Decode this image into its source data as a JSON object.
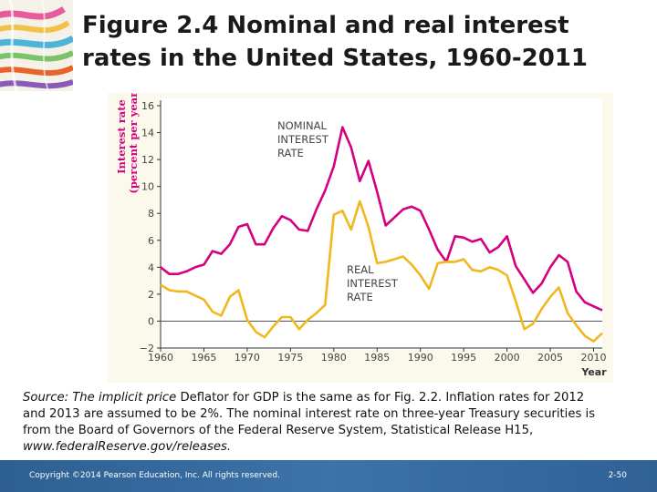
{
  "slide": {
    "title_line1": "Figure 2.4  Nominal and real interest",
    "title_line2": "rates in the United States, 1960-2011"
  },
  "source": {
    "label": "Source:",
    "line1_italic": "The implicit price",
    "line1_rest": "Deflator for GDP is the same as for Fig. 2.2. Inflation rates for 2012",
    "line2": "and 2013 are assumed to be 2%. The nominal interest rate on three-year Treasury securities is",
    "line3": "from the Board of Governors of the Federal Reserve System, Statistical Release H15,",
    "url": "www.federalReserve.gov/releases."
  },
  "footer": {
    "copyright": "Copyright ©2014 Pearson Education, Inc. All rights reserved.",
    "page": "2-50"
  },
  "chart_data": {
    "type": "line",
    "ylabel_line1": "Interest rate",
    "ylabel_line2": "(percent per year)",
    "xlabel": "Year",
    "xlim": [
      1960,
      2011
    ],
    "ylim": [
      -2,
      16
    ],
    "xticks": [
      "1960",
      "1965",
      "1970",
      "1975",
      "1980",
      "1985",
      "1990",
      "1995",
      "2000",
      "2005",
      "2010"
    ],
    "yticks": [
      "16",
      "14",
      "12",
      "10",
      "8",
      "6",
      "4",
      "2",
      "0",
      "−2"
    ],
    "series": [
      {
        "name": "NOMINAL INTEREST RATE",
        "label_lines": [
          "NOMINAL",
          "INTEREST",
          "RATE"
        ],
        "color": "#d5007f",
        "x": [
          1960,
          1961,
          1962,
          1963,
          1964,
          1965,
          1966,
          1967,
          1968,
          1969,
          1970,
          1971,
          1972,
          1973,
          1974,
          1975,
          1976,
          1977,
          1978,
          1979,
          1980,
          1981,
          1982,
          1983,
          1984,
          1985,
          1986,
          1987,
          1988,
          1989,
          1990,
          1991,
          1992,
          1993,
          1994,
          1995,
          1996,
          1997,
          1998,
          1999,
          2000,
          2001,
          2002,
          2003,
          2004,
          2005,
          2006,
          2007,
          2008,
          2009,
          2010,
          2011
        ],
        "y": [
          4.0,
          3.5,
          3.5,
          3.7,
          4.0,
          4.2,
          5.2,
          5.0,
          5.7,
          7.0,
          7.2,
          5.7,
          5.7,
          6.9,
          7.8,
          7.5,
          6.8,
          6.7,
          8.3,
          9.7,
          11.5,
          14.4,
          12.9,
          10.4,
          11.9,
          9.6,
          7.1,
          7.7,
          8.3,
          8.5,
          8.2,
          6.8,
          5.3,
          4.4,
          6.3,
          6.2,
          5.9,
          6.1,
          5.1,
          5.5,
          6.3,
          4.1,
          3.1,
          2.1,
          2.8,
          4.0,
          4.9,
          4.4,
          2.2,
          1.4,
          1.1,
          0.8
        ]
      },
      {
        "name": "REAL INTEREST RATE",
        "label_lines": [
          "REAL",
          "INTEREST",
          "RATE"
        ],
        "color": "#f0b81e",
        "x": [
          1960,
          1961,
          1962,
          1963,
          1964,
          1965,
          1966,
          1967,
          1968,
          1969,
          1970,
          1971,
          1972,
          1973,
          1974,
          1975,
          1976,
          1977,
          1978,
          1979,
          1980,
          1981,
          1982,
          1983,
          1984,
          1985,
          1986,
          1987,
          1988,
          1989,
          1990,
          1991,
          1992,
          1993,
          1994,
          1995,
          1996,
          1997,
          1998,
          1999,
          2000,
          2001,
          2002,
          2003,
          2004,
          2005,
          2006,
          2007,
          2008,
          2009,
          2010,
          2011
        ],
        "y": [
          2.7,
          2.3,
          2.2,
          2.2,
          1.9,
          1.6,
          0.7,
          0.4,
          1.8,
          2.3,
          0.1,
          -0.8,
          -1.2,
          -0.4,
          0.3,
          0.3,
          -0.6,
          0.1,
          0.6,
          1.2,
          7.9,
          8.2,
          6.8,
          8.9,
          7.0,
          4.3,
          4.4,
          4.6,
          4.8,
          4.2,
          3.4,
          2.4,
          4.3,
          4.4,
          4.4,
          4.6,
          3.8,
          3.7,
          4.0,
          3.8,
          3.4,
          1.5,
          -0.6,
          -0.2,
          0.9,
          1.8,
          2.5,
          0.6,
          -0.3,
          -1.1,
          -1.5,
          -0.9
        ]
      }
    ],
    "grid": false,
    "legend": "inline-labels"
  }
}
